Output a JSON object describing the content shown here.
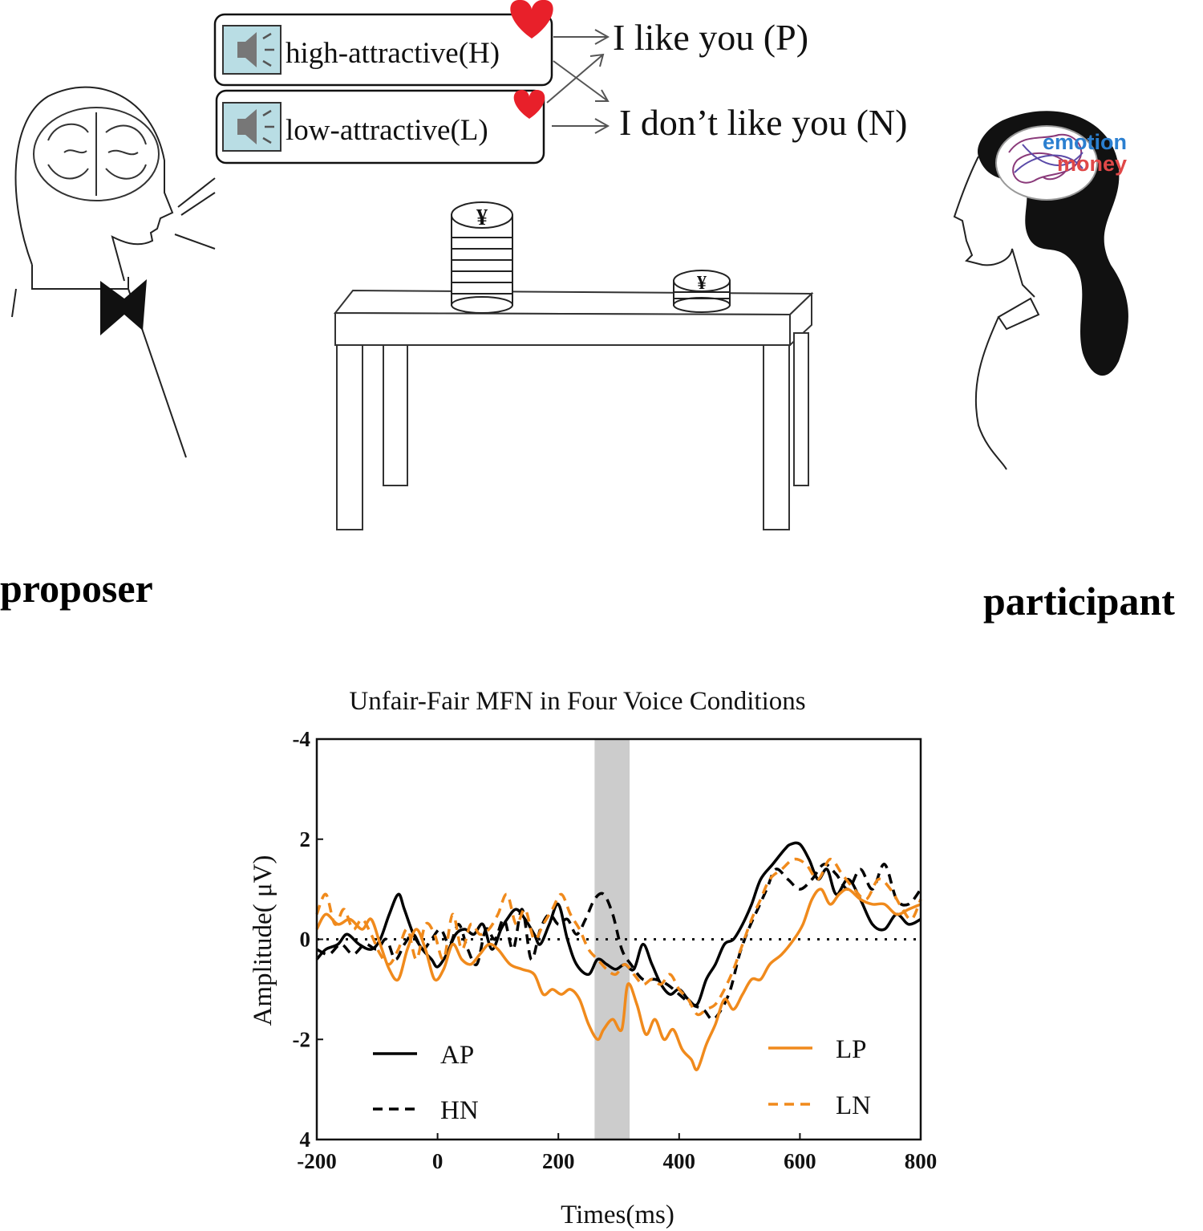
{
  "voices": {
    "high_label": "high-attractive(H)",
    "low_label": "low-attractive(L)"
  },
  "outcomes": {
    "positive": "I like you (P)",
    "negative": "I don’t like you (N)"
  },
  "brain_words": {
    "emotion": "emotion",
    "money": "money"
  },
  "coin_symbol": "¥",
  "roles": {
    "proposer": "proposer",
    "participant": "participant"
  },
  "colors": {
    "heart": "#e8202a",
    "speaker_box": "#b9dde4",
    "emotion": "#2b7fd0",
    "money": "#e04848",
    "series_black": "#000000",
    "series_orange": "#f08a1c",
    "highlight": "#cccccc"
  },
  "chart_data": {
    "type": "line",
    "title": "Unfair-Fair MFN in Four Voice Conditions",
    "xlabel": "Times(ms)",
    "ylabel": "Amplitude( μV)",
    "xlim": [
      -200,
      800
    ],
    "ylim": [
      -4,
      4
    ],
    "y_inverted": true,
    "x_ticks": [
      "-200",
      "0",
      "200",
      "400",
      "600",
      "800"
    ],
    "y_ticks": [
      "-4",
      "2",
      "0",
      "-2",
      "4"
    ],
    "highlight_window": [
      260,
      318
    ],
    "zero_line": "dotted",
    "legend_placement": "bottom",
    "series": [
      {
        "name": "AP",
        "style": "solid",
        "color": "#000000",
        "x": [
          -200,
          -185,
          -165,
          -150,
          -130,
          -110,
          -95,
          -80,
          -65,
          -55,
          -40,
          -25,
          -10,
          0,
          15,
          30,
          45,
          60,
          75,
          90,
          105,
          115,
          130,
          145,
          160,
          170,
          185,
          200,
          215,
          230,
          250,
          265,
          280,
          295,
          310,
          325,
          340,
          355,
          370,
          385,
          400,
          415,
          430,
          445,
          460,
          475,
          490,
          505,
          520,
          535,
          555,
          575,
          585,
          600,
          615,
          630,
          645,
          660,
          680,
          700,
          720,
          740,
          760,
          780,
          800
        ],
        "y": [
          0.4,
          0.2,
          0.1,
          -0.1,
          0.1,
          0.2,
          0.0,
          -0.5,
          -0.9,
          -0.6,
          -0.1,
          0.2,
          0.4,
          0.55,
          0.3,
          -0.1,
          -0.2,
          -0.1,
          -0.3,
          0.2,
          -0.2,
          -0.4,
          -0.6,
          -0.4,
          -0.1,
          0.1,
          -0.3,
          -0.7,
          0.0,
          0.5,
          0.7,
          0.4,
          0.5,
          0.6,
          0.5,
          0.6,
          0.1,
          0.5,
          0.9,
          1.1,
          1.0,
          1.2,
          1.3,
          0.8,
          0.5,
          0.1,
          0.0,
          -0.3,
          -0.7,
          -1.2,
          -1.5,
          -1.8,
          -1.9,
          -1.9,
          -1.6,
          -1.2,
          -1.4,
          -0.9,
          -1.2,
          -0.8,
          -0.3,
          -0.2,
          -0.5,
          -0.3,
          -0.4
        ]
      },
      {
        "name": "HN",
        "style": "dashed",
        "color": "#000000",
        "x": [
          -200,
          -180,
          -160,
          -140,
          -120,
          -100,
          -85,
          -70,
          -55,
          -40,
          -25,
          -10,
          5,
          20,
          35,
          50,
          65,
          80,
          95,
          110,
          125,
          140,
          155,
          170,
          185,
          200,
          215,
          230,
          245,
          260,
          275,
          290,
          305,
          320,
          340,
          360,
          380,
          400,
          420,
          440,
          455,
          470,
          485,
          500,
          515,
          530,
          545,
          560,
          580,
          600,
          620,
          640,
          660,
          680,
          700,
          720,
          740,
          760,
          780,
          800
        ],
        "y": [
          0.2,
          0.3,
          0.1,
          0.3,
          0.1,
          0.2,
          0.0,
          0.4,
          0.1,
          -0.1,
          0.2,
          0.0,
          -0.2,
          0.1,
          -0.3,
          0.2,
          0.5,
          -0.2,
          0.0,
          -0.4,
          0.2,
          -0.6,
          0.4,
          -0.2,
          -0.5,
          -0.3,
          -0.4,
          -0.1,
          -0.4,
          -0.8,
          -0.9,
          -0.5,
          0.2,
          0.5,
          0.8,
          0.8,
          0.9,
          1.1,
          1.3,
          1.4,
          1.6,
          1.4,
          1.0,
          0.3,
          -0.2,
          -0.6,
          -1.0,
          -1.4,
          -1.2,
          -1.0,
          -1.2,
          -1.5,
          -1.3,
          -1.0,
          -1.4,
          -1.0,
          -1.5,
          -0.8,
          -0.7,
          -1.0
        ]
      },
      {
        "name": "LP",
        "style": "solid",
        "color": "#f08a1c",
        "x": [
          -200,
          -185,
          -165,
          -145,
          -125,
          -110,
          -95,
          -80,
          -65,
          -50,
          -35,
          -20,
          -5,
          10,
          25,
          40,
          55,
          70,
          85,
          100,
          120,
          140,
          160,
          175,
          190,
          205,
          220,
          235,
          250,
          265,
          275,
          290,
          305,
          315,
          330,
          345,
          360,
          375,
          390,
          405,
          420,
          430,
          445,
          460,
          475,
          490,
          505,
          520,
          535,
          550,
          570,
          590,
          605,
          620,
          635,
          650,
          665,
          680,
          700,
          720,
          740,
          760,
          780,
          800
        ],
        "y": [
          -0.2,
          -0.5,
          -0.3,
          -0.4,
          -0.2,
          -0.4,
          0.1,
          0.6,
          0.8,
          0.2,
          -0.2,
          0.2,
          0.8,
          0.6,
          0.1,
          0.4,
          0.5,
          0.3,
          0.1,
          0.2,
          0.5,
          0.6,
          0.7,
          1.1,
          1.0,
          1.1,
          1.0,
          1.2,
          1.7,
          2.0,
          1.8,
          1.6,
          1.8,
          0.9,
          1.3,
          1.9,
          1.6,
          2.0,
          1.8,
          2.2,
          2.4,
          2.6,
          2.1,
          1.7,
          1.2,
          1.4,
          1.1,
          0.8,
          0.8,
          0.5,
          0.3,
          0.0,
          -0.3,
          -0.8,
          -1.0,
          -0.7,
          -0.9,
          -1.0,
          -0.8,
          -0.7,
          -0.7,
          -0.5,
          -0.6,
          -0.7
        ]
      },
      {
        "name": "LN",
        "style": "dashed",
        "color": "#f08a1c",
        "x": [
          -200,
          -185,
          -170,
          -155,
          -140,
          -125,
          -110,
          -95,
          -80,
          -65,
          -50,
          -35,
          -20,
          -5,
          10,
          25,
          40,
          55,
          70,
          85,
          100,
          115,
          130,
          145,
          160,
          175,
          190,
          205,
          220,
          235,
          250,
          265,
          280,
          295,
          310,
          325,
          340,
          355,
          370,
          385,
          400,
          415,
          430,
          445,
          460,
          475,
          490,
          505,
          520,
          535,
          550,
          570,
          590,
          610,
          630,
          650,
          670,
          690,
          710,
          730,
          750,
          770,
          785,
          800
        ],
        "y": [
          -0.5,
          -0.9,
          -0.3,
          -0.6,
          -0.2,
          -0.4,
          -0.1,
          0.3,
          0.5,
          0.2,
          -0.2,
          0.4,
          -0.3,
          -0.1,
          0.4,
          -0.5,
          0.2,
          -0.3,
          -0.1,
          -0.2,
          -0.5,
          -0.9,
          -0.3,
          -0.6,
          0.0,
          -0.3,
          -0.6,
          -0.9,
          -0.5,
          -0.2,
          0.2,
          0.4,
          0.6,
          0.7,
          0.5,
          0.7,
          0.9,
          0.8,
          0.9,
          0.7,
          1.0,
          1.2,
          1.5,
          1.4,
          1.3,
          1.0,
          0.6,
          0.1,
          -0.4,
          -0.8,
          -1.2,
          -1.4,
          -1.6,
          -1.5,
          -1.2,
          -1.6,
          -1.3,
          -1.0,
          -0.8,
          -1.2,
          -1.0,
          -0.6,
          -0.4,
          -0.8
        ]
      }
    ]
  }
}
